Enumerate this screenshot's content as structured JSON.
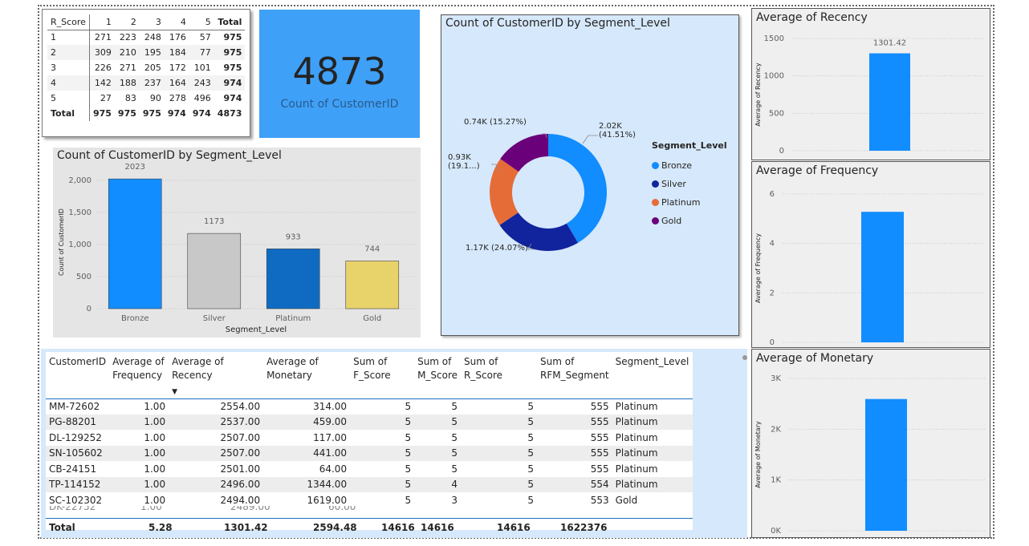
{
  "matrix": {
    "corner": "R_Score",
    "columns": [
      "1",
      "2",
      "3",
      "4",
      "5",
      "Total"
    ],
    "rows": [
      {
        "label": "1",
        "values": [
          "271",
          "223",
          "248",
          "176",
          "57",
          "975"
        ]
      },
      {
        "label": "2",
        "values": [
          "309",
          "210",
          "195",
          "184",
          "77",
          "975"
        ]
      },
      {
        "label": "3",
        "values": [
          "226",
          "271",
          "205",
          "172",
          "101",
          "975"
        ]
      },
      {
        "label": "4",
        "values": [
          "142",
          "188",
          "237",
          "164",
          "243",
          "974"
        ]
      },
      {
        "label": "5",
        "values": [
          "27",
          "83",
          "90",
          "278",
          "496",
          "974"
        ]
      }
    ],
    "total": {
      "label": "Total",
      "values": [
        "975",
        "975",
        "975",
        "974",
        "974",
        "4873"
      ]
    }
  },
  "kpi": {
    "value": "4873",
    "label": "Count of CustomerID"
  },
  "bar_chart": {
    "title": "Count of CustomerID by Segment_Level",
    "xlabel": "Segment_Level",
    "ylabel": "Count of CustomerID",
    "yticks": [
      "0",
      "500",
      "1,000",
      "1,500",
      "2,000"
    ]
  },
  "donut_chart": {
    "title": "Count of CustomerID by Segment_Level",
    "legend_title": "Segment_Level",
    "labels": [
      {
        "line1": "2.02K",
        "line2": "(41.51%)"
      },
      {
        "line1": "1.17K (24.07%)",
        "line2": ""
      },
      {
        "line1": "0.93K",
        "line2": "(19.1...)"
      },
      {
        "line1": "0.74K (15.27%)",
        "line2": ""
      }
    ]
  },
  "recency_chart": {
    "title": "Average of Recency",
    "ylabel": "Average of Recency",
    "yticks": [
      "0",
      "500",
      "1000",
      "1500"
    ],
    "label": "1301.42"
  },
  "frequency_chart": {
    "title": "Average of Frequency",
    "ylabel": "Average of Frequency",
    "yticks": [
      "0",
      "2",
      "4",
      "6"
    ]
  },
  "monetary_chart": {
    "title": "Average of Monetary",
    "ylabel": "Average of Monetary",
    "yticks": [
      "0K",
      "1K",
      "2K",
      "3K"
    ]
  },
  "detail_table": {
    "headers": [
      "CustomerID",
      "Average of Frequency",
      "Average of Recency",
      "Average of Monetary",
      "Sum of F_Score",
      "Sum of M_Score",
      "Sum of R_Score",
      "Sum of RFM_Segment",
      "Segment_Level"
    ],
    "rows": [
      [
        "MM-72602",
        "1.00",
        "2554.00",
        "314.00",
        "5",
        "5",
        "5",
        "555",
        "Platinum"
      ],
      [
        "PG-88201",
        "1.00",
        "2537.00",
        "459.00",
        "5",
        "5",
        "5",
        "555",
        "Platinum"
      ],
      [
        "DL-129252",
        "1.00",
        "2507.00",
        "117.00",
        "5",
        "5",
        "5",
        "555",
        "Platinum"
      ],
      [
        "SN-105602",
        "1.00",
        "2507.00",
        "441.00",
        "5",
        "5",
        "5",
        "555",
        "Platinum"
      ],
      [
        "CB-24151",
        "1.00",
        "2501.00",
        "64.00",
        "5",
        "5",
        "5",
        "555",
        "Platinum"
      ],
      [
        "TP-114152",
        "1.00",
        "2496.00",
        "1344.00",
        "5",
        "4",
        "5",
        "554",
        "Platinum"
      ],
      [
        "SC-102302",
        "1.00",
        "2494.00",
        "1619.00",
        "5",
        "3",
        "5",
        "553",
        "Gold"
      ]
    ],
    "total": [
      "Total",
      "5.28",
      "1301.42",
      "2594.48",
      "14616",
      "14616",
      "14616",
      "1622376"
    ]
  },
  "chart_data": [
    {
      "type": "bar",
      "title": "Count of CustomerID by Segment_Level",
      "xlabel": "Segment_Level",
      "ylabel": "Count of CustomerID",
      "categories": [
        "Bronze",
        "Silver",
        "Platinum",
        "Gold"
      ],
      "values": [
        2023,
        1173,
        933,
        744
      ],
      "ylim": [
        0,
        2200
      ],
      "colors": [
        "#118dff",
        "#c8c8c8",
        "#0f6bc2",
        "#e8d26a"
      ]
    },
    {
      "type": "pie",
      "title": "Count of CustomerID by Segment_Level",
      "legend": "right",
      "categories": [
        "Bronze",
        "Silver",
        "Platinum",
        "Gold"
      ],
      "values": [
        2023,
        1173,
        933,
        744
      ],
      "colors": [
        "#118dff",
        "#12239e",
        "#e66c37",
        "#6b007b"
      ]
    },
    {
      "type": "bar",
      "title": "Average of Recency",
      "ylabel": "Average of Recency",
      "categories": [
        ""
      ],
      "values": [
        1301.42
      ],
      "ylim": [
        0,
        1500
      ],
      "colors": [
        "#118dff"
      ]
    },
    {
      "type": "bar",
      "title": "Average of Frequency",
      "ylabel": "Average of Frequency",
      "categories": [
        ""
      ],
      "values": [
        5.28
      ],
      "ylim": [
        0,
        6
      ],
      "colors": [
        "#118dff"
      ]
    },
    {
      "type": "bar",
      "title": "Average of Monetary",
      "ylabel": "Average of Monetary",
      "categories": [
        ""
      ],
      "values": [
        2594.48
      ],
      "ylim": [
        0,
        3000
      ],
      "colors": [
        "#118dff"
      ]
    }
  ]
}
